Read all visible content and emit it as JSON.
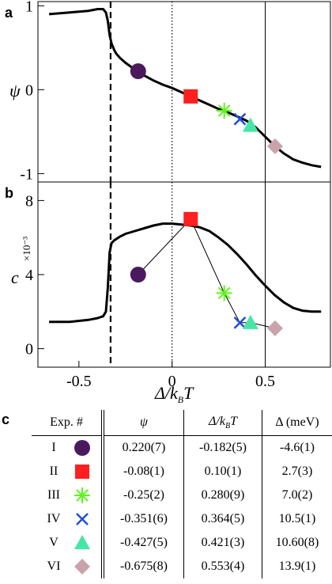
{
  "colors": {
    "I": "#4b1a5e",
    "II": "#ff1f1f",
    "III": "#5cf51a",
    "IV": "#1f4fd6",
    "V": "#46e6a6",
    "VI": "#c9a3ac"
  },
  "panel_a": {
    "letter": "a",
    "ylabel": "ψ"
  },
  "panel_b": {
    "letter": "b",
    "ylabel": "c",
    "yunit": "×10⁻³"
  },
  "xlabel": "Δ/k_BT",
  "xlabel_main": "Δ/k",
  "xlabel_sub": "B",
  "xlabel_end": "T",
  "table_letter": "c",
  "table": {
    "headers": [
      "Exp. #",
      "ψ",
      "Δ/k_BT",
      "Δ (meV)"
    ],
    "rows": [
      {
        "id": "I",
        "marker": "circle",
        "psi": "0.220(7)",
        "delta_kt": "-0.182(5)",
        "delta_mev": "-4.6(1)"
      },
      {
        "id": "II",
        "marker": "square",
        "psi": "-0.08(1)",
        "delta_kt": "0.10(1)",
        "delta_mev": "2.7(3)"
      },
      {
        "id": "III",
        "marker": "star",
        "psi": "-0.25(2)",
        "delta_kt": "0.280(9)",
        "delta_mev": "7.0(2)"
      },
      {
        "id": "IV",
        "marker": "cross",
        "psi": "-0.351(6)",
        "delta_kt": "0.364(5)",
        "delta_mev": "10.5(1)"
      },
      {
        "id": "V",
        "marker": "triangle",
        "psi": "-0.427(5)",
        "delta_kt": "0.421(3)",
        "delta_mev": "10.60(8)"
      },
      {
        "id": "VI",
        "marker": "diamond",
        "psi": "-0.675(8)",
        "delta_kt": "0.553(4)",
        "delta_mev": "13.9(1)"
      }
    ]
  },
  "chart_data": [
    {
      "type": "line",
      "panel": "a",
      "ylabel": "ψ",
      "xlabel": "",
      "xlim": [
        -0.72,
        0.85
      ],
      "ylim": [
        -1.1,
        1.05
      ],
      "y_ticks": [
        1,
        0,
        -1
      ],
      "y_tick_labels": [
        "1",
        "0",
        "-1"
      ],
      "vertical_lines": [
        {
          "x": -0.33,
          "style": "dashed"
        },
        {
          "x": 0.0,
          "style": "dotted"
        },
        {
          "x": 0.5,
          "style": "solid-thin"
        }
      ],
      "curve": {
        "x": [
          -0.66,
          -0.55,
          -0.45,
          -0.4,
          -0.37,
          -0.355,
          -0.345,
          -0.335,
          -0.325,
          -0.31,
          -0.3,
          -0.28,
          -0.25,
          -0.2,
          -0.15,
          -0.1,
          -0.05,
          0.0,
          0.05,
          0.1,
          0.15,
          0.2,
          0.25,
          0.3,
          0.35,
          0.4,
          0.45,
          0.5,
          0.55,
          0.6,
          0.65,
          0.7,
          0.75,
          0.8
        ],
        "y": [
          0.9,
          0.92,
          0.94,
          0.96,
          0.96,
          0.92,
          0.82,
          0.65,
          0.55,
          0.47,
          0.43,
          0.38,
          0.32,
          0.24,
          0.17,
          0.11,
          0.06,
          0.02,
          -0.03,
          -0.08,
          -0.13,
          -0.18,
          -0.23,
          -0.27,
          -0.32,
          -0.37,
          -0.45,
          -0.56,
          -0.67,
          -0.76,
          -0.83,
          -0.87,
          -0.9,
          -0.92
        ]
      },
      "points": [
        {
          "label": "I",
          "x": -0.182,
          "y": 0.22,
          "marker": "circle"
        },
        {
          "label": "II",
          "x": 0.1,
          "y": -0.08,
          "marker": "square"
        },
        {
          "label": "III",
          "x": 0.28,
          "y": -0.25,
          "marker": "star"
        },
        {
          "label": "IV",
          "x": 0.364,
          "y": -0.351,
          "marker": "cross"
        },
        {
          "label": "V",
          "x": 0.421,
          "y": -0.427,
          "marker": "triangle"
        },
        {
          "label": "VI",
          "x": 0.553,
          "y": -0.675,
          "marker": "diamond"
        }
      ]
    },
    {
      "type": "line",
      "panel": "b",
      "ylabel": "c",
      "y_unit": "×10⁻³",
      "xlabel": "Δ/k_BT",
      "xlim": [
        -0.72,
        0.85
      ],
      "ylim": [
        -1.0,
        9.0
      ],
      "y_ticks": [
        0,
        4,
        8
      ],
      "y_tick_labels": [
        "0",
        "4",
        "8"
      ],
      "x_ticks": [
        -0.5,
        0,
        0.5
      ],
      "x_tick_labels": [
        "-0.5",
        "0",
        "0.5"
      ],
      "vertical_lines": [
        {
          "x": -0.33,
          "style": "dashed"
        },
        {
          "x": 0.0,
          "style": "dotted"
        },
        {
          "x": 0.5,
          "style": "solid-thin"
        }
      ],
      "curve": {
        "x": [
          -0.66,
          -0.55,
          -0.45,
          -0.4,
          -0.37,
          -0.355,
          -0.345,
          -0.335,
          -0.325,
          -0.31,
          -0.28,
          -0.25,
          -0.2,
          -0.15,
          -0.1,
          -0.05,
          0.0,
          0.05,
          0.1,
          0.15,
          0.2,
          0.25,
          0.3,
          0.35,
          0.4,
          0.45,
          0.5,
          0.55,
          0.6,
          0.65,
          0.7,
          0.75,
          0.8
        ],
        "y": [
          1.45,
          1.45,
          1.55,
          1.65,
          1.75,
          2.0,
          3.3,
          5.2,
          5.7,
          5.85,
          6.05,
          6.2,
          6.35,
          6.5,
          6.65,
          6.75,
          6.75,
          6.7,
          6.65,
          6.55,
          6.35,
          6.0,
          5.6,
          5.1,
          4.55,
          3.95,
          3.4,
          2.9,
          2.5,
          2.2,
          2.05,
          2.0,
          2.0
        ]
      },
      "connector_line": true,
      "points": [
        {
          "label": "I",
          "x": -0.182,
          "y": 4.0,
          "marker": "circle"
        },
        {
          "label": "II",
          "x": 0.1,
          "y": 7.0,
          "marker": "square"
        },
        {
          "label": "III",
          "x": 0.28,
          "y": 3.0,
          "marker": "star"
        },
        {
          "label": "IV",
          "x": 0.364,
          "y": 1.4,
          "marker": "cross"
        },
        {
          "label": "V",
          "x": 0.421,
          "y": 1.4,
          "marker": "triangle"
        },
        {
          "label": "VI",
          "x": 0.553,
          "y": 1.1,
          "marker": "diamond"
        }
      ]
    }
  ]
}
